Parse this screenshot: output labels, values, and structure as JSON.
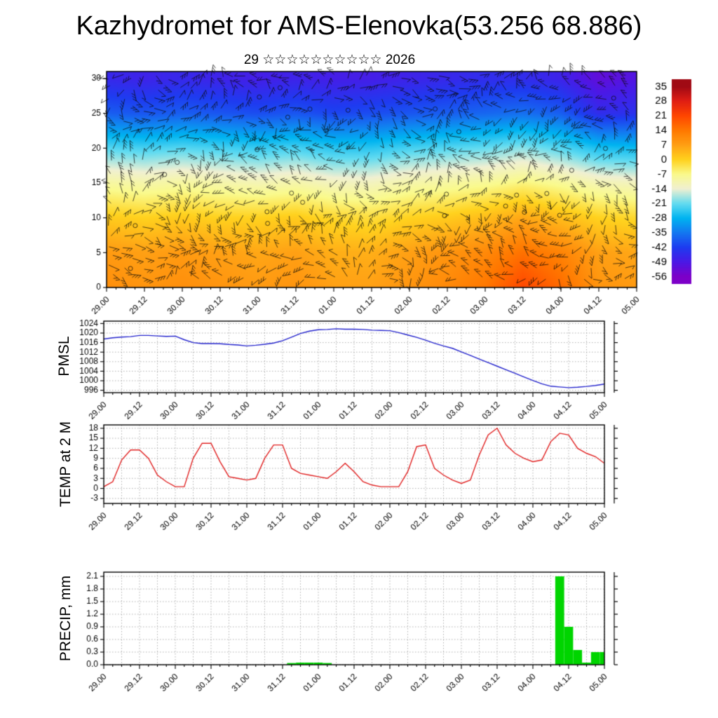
{
  "title": "Kazhydromet for AMS-Elenovka(53.256 68.886)",
  "subtitle": "29 ☆☆☆☆☆☆☆☆☆☆ 2026",
  "x_labels": [
    "29.00",
    "29.12",
    "30.00",
    "30.12",
    "31.00",
    "31.12",
    "01.00",
    "01.12",
    "02.00",
    "02.12",
    "03.00",
    "03.12",
    "04.00",
    "04.12",
    "05.00"
  ],
  "time_step_hours": 3,
  "chart_data": [
    {
      "type": "heatmap",
      "name": "temperature-height-cross-section",
      "overlay": "wind-barbs",
      "y_ticks": [
        0,
        5,
        10,
        15,
        20,
        25,
        30
      ],
      "y_range": [
        0,
        31
      ],
      "heights": [
        0,
        5,
        10,
        15,
        20,
        25,
        30
      ],
      "temps_by_height": [
        [
          10,
          9,
          10,
          9,
          8,
          9,
          7,
          7,
          9,
          11,
          14,
          21,
          16,
          9,
          8
        ],
        [
          8,
          7,
          8,
          7,
          6,
          7,
          5,
          5,
          7,
          9,
          11,
          15,
          12,
          7,
          6
        ],
        [
          1,
          0,
          1,
          0,
          0,
          1,
          -1,
          -2,
          0,
          1,
          3,
          6,
          3,
          0,
          -1
        ],
        [
          -9,
          -10,
          -9,
          -10,
          -11,
          -10,
          -12,
          -12,
          -10,
          -9,
          -8,
          -6,
          -8,
          -11,
          -12
        ],
        [
          -22,
          -23,
          -22,
          -23,
          -24,
          -23,
          -25,
          -25,
          -23,
          -22,
          -21,
          -19,
          -22,
          -26,
          -27
        ],
        [
          -38,
          -39,
          -38,
          -39,
          -40,
          -39,
          -41,
          -40,
          -39,
          -38,
          -37,
          -36,
          -38,
          -45,
          -44
        ],
        [
          -46,
          -47,
          -46,
          -47,
          -48,
          -47,
          -48,
          -48,
          -47,
          -46,
          -45,
          -45,
          -47,
          -52,
          -50
        ]
      ],
      "colormap": [
        [
          -56,
          "#7d00c8"
        ],
        [
          -49,
          "#4b19e6"
        ],
        [
          -42,
          "#1e3cf0"
        ],
        [
          -35,
          "#1478f0"
        ],
        [
          -28,
          "#00b4f0"
        ],
        [
          -21,
          "#64dcf0"
        ],
        [
          -14,
          "#f0f0d2"
        ],
        [
          -7,
          "#fafa8c"
        ],
        [
          0,
          "#ffd21e"
        ],
        [
          7,
          "#ffa014"
        ],
        [
          14,
          "#ff7800"
        ],
        [
          21,
          "#ff4600"
        ],
        [
          28,
          "#e11e14"
        ],
        [
          35,
          "#a00a14"
        ]
      ],
      "colorbar_levels": [
        35,
        28,
        21,
        14,
        7,
        0,
        -7,
        -14,
        -21,
        -28,
        -35,
        -42,
        -49,
        -56
      ]
    },
    {
      "type": "line",
      "name": "PMSL",
      "color": "#2222cc",
      "y_ticks": [
        996,
        1000,
        1004,
        1008,
        1012,
        1016,
        1020,
        1024
      ],
      "y_range": [
        995,
        1025
      ],
      "values": [
        1017.5,
        1018,
        1018.3,
        1018.5,
        1019,
        1019,
        1018.8,
        1018.6,
        1018.7,
        1017.2,
        1016,
        1015.6,
        1015.6,
        1015.5,
        1015.2,
        1015,
        1014.6,
        1014.9,
        1015.3,
        1015.8,
        1016.8,
        1018.3,
        1019.8,
        1020.8,
        1021.4,
        1021.5,
        1021.8,
        1021.6,
        1021.6,
        1021.5,
        1021.2,
        1021.1,
        1021,
        1020.2,
        1019.2,
        1018.2,
        1017,
        1015.7,
        1014.6,
        1013.6,
        1012.1,
        1010.6,
        1009.1,
        1007.6,
        1006.1,
        1004.6,
        1003.1,
        1001.6,
        1000.1,
        998.7,
        997.7,
        997.4,
        997.1,
        997.3,
        997.6,
        998,
        998.6
      ]
    },
    {
      "type": "line",
      "name": "TEMP at 2 M",
      "color": "#e02020",
      "y_ticks": [
        -3,
        0,
        3,
        6,
        9,
        12,
        15,
        18
      ],
      "y_range": [
        -4.5,
        19
      ],
      "values": [
        0.5,
        2,
        8.5,
        11.5,
        11.5,
        9,
        4,
        2,
        0.5,
        0.5,
        9,
        13.5,
        13.5,
        8,
        3.5,
        3,
        2.5,
        3,
        9,
        13,
        13,
        6,
        4.5,
        4,
        3.5,
        3,
        5,
        7.5,
        5,
        2,
        1,
        0.5,
        0.5,
        0.5,
        5,
        12.5,
        13,
        6,
        4,
        2.5,
        1.5,
        2.5,
        10,
        16,
        18,
        13,
        10.5,
        9,
        8,
        8.5,
        14,
        16.5,
        16,
        12,
        10.5,
        9.5,
        7.5
      ]
    },
    {
      "type": "bar",
      "name": "PRECIP, mm",
      "color": "#00d500",
      "tick_format": "fixed1",
      "y_ticks": [
        0,
        0.3,
        0.6,
        0.9,
        1.2,
        1.5,
        1.8,
        2.1
      ],
      "y_range": [
        0,
        2.2
      ],
      "values": [
        0,
        0,
        0,
        0,
        0,
        0,
        0,
        0,
        0,
        0,
        0,
        0,
        0,
        0,
        0,
        0,
        0,
        0,
        0,
        0,
        0,
        0.04,
        0.05,
        0.05,
        0.05,
        0.04,
        0,
        0,
        0,
        0,
        0,
        0,
        0,
        0,
        0,
        0,
        0,
        0,
        0,
        0,
        0,
        0,
        0,
        0,
        0,
        0,
        0,
        0,
        0,
        0,
        0,
        2.1,
        0.9,
        0.35,
        0.05,
        0.3,
        0.3
      ]
    }
  ]
}
